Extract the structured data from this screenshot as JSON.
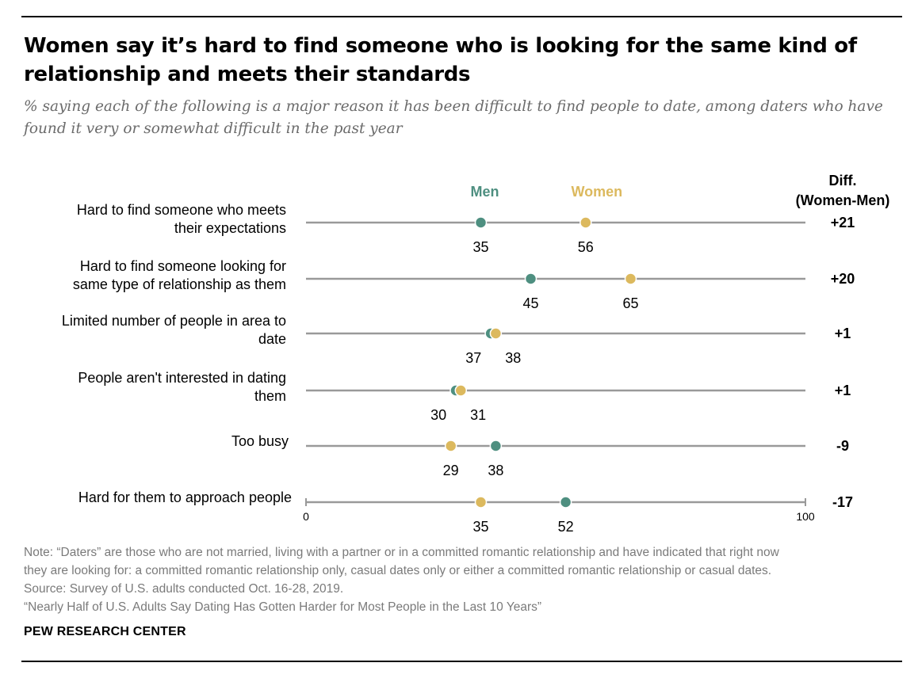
{
  "title_line1": "Women say it’s hard to find someone who is looking for the same kind of",
  "title_line2": "relationship and meets their standards",
  "subtitle_line1": "% saying each of the following is a major reason it has been difficult to find people to date, among daters who have",
  "subtitle_line2": "found it very or somewhat difficult in the past year",
  "colors": {
    "men": "#4e8f80",
    "women": "#dcb95e",
    "line": "#999999"
  },
  "chart_data": {
    "type": "dot",
    "xlim": [
      0,
      100
    ],
    "ticks": [
      "0",
      "100"
    ],
    "legend": {
      "men": "Men",
      "women": "Women"
    },
    "diff_header": [
      "Diff.",
      "(Women-Men)"
    ],
    "rows": [
      {
        "label": [
          "Hard to find someone who meets",
          "their expectations"
        ],
        "men": 35,
        "women": 56,
        "diff": "+21"
      },
      {
        "label": [
          "Hard to find someone looking for",
          "same type of relationship as them"
        ],
        "men": 45,
        "women": 65,
        "diff": "+20"
      },
      {
        "label": [
          "Limited number of people in area to",
          "date"
        ],
        "men": 37,
        "women": 38,
        "diff": "+1"
      },
      {
        "label": [
          "People aren't interested in dating",
          "them"
        ],
        "men": 30,
        "women": 31,
        "diff": "+1"
      },
      {
        "label": [
          "Too busy"
        ],
        "men": 38,
        "women": 29,
        "diff": "-9"
      },
      {
        "label": [
          "Hard for them to approach people"
        ],
        "men": 52,
        "women": 35,
        "diff": "-17"
      }
    ]
  },
  "note": [
    "Note: “Daters” are those who are not married, living with a partner or in a committed romantic relationship and have indicated that right now",
    "they are looking for: a committed romantic relationship only, casual dates only or either a committed romantic relationship or casual dates.",
    "Source: Survey of U.S. adults conducted Oct. 16-28, 2019.",
    "“Nearly Half of U.S. Adults Say Dating Has Gotten Harder for Most People in the Last 10 Years”"
  ],
  "source_org": "PEW RESEARCH CENTER"
}
